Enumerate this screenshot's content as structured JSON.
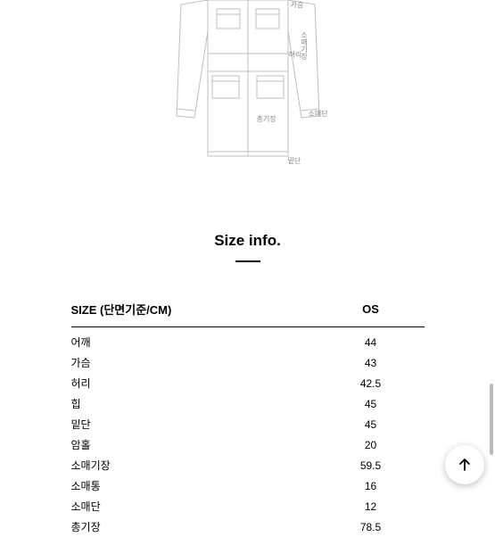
{
  "diagram": {
    "labels": {
      "chest": "가슴",
      "sleeve_width": "소매기장",
      "waist": "허리",
      "total_length": "총기장",
      "cuff": "소매단",
      "hem": "밑단"
    },
    "stroke_color": "#bfbfbf",
    "label_color": "#888888",
    "label_fontsize": 8
  },
  "section_title": "Size info.",
  "table": {
    "header_left": "SIZE (단면기준/CM)",
    "header_right": "OS",
    "rows": [
      {
        "label": "어깨",
        "value": "44"
      },
      {
        "label": "가슴",
        "value": "43"
      },
      {
        "label": "허리",
        "value": "42.5"
      },
      {
        "label": "힙",
        "value": "45"
      },
      {
        "label": "밑단",
        "value": "45"
      },
      {
        "label": "암홀",
        "value": "20"
      },
      {
        "label": "소매기장",
        "value": "59.5"
      },
      {
        "label": "소매통",
        "value": "16"
      },
      {
        "label": "소매단",
        "value": "12"
      },
      {
        "label": "총기장",
        "value": "78.5"
      }
    ],
    "header_fontsize": 13,
    "cell_fontsize": 12,
    "border_color": "#000000"
  },
  "colors": {
    "background": "#ffffff",
    "text": "#000000",
    "scrollbar": "#bbbbbb"
  }
}
